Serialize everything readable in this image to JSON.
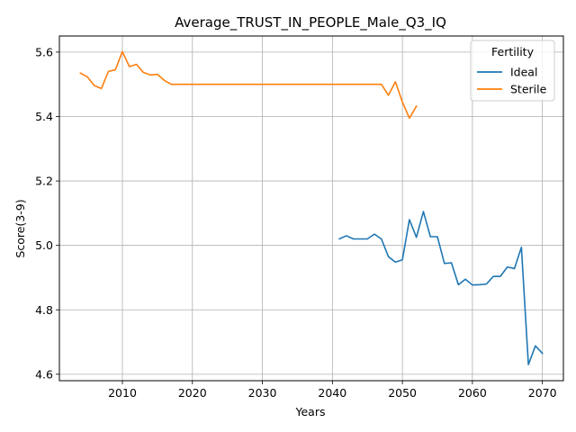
{
  "chart_data": {
    "type": "line",
    "title": "Average_TRUST_IN_PEOPLE_Male_Q3_IQ",
    "xlabel": "Years",
    "ylabel": "Score(3-9)",
    "xlim": [
      2001,
      2073
    ],
    "ylim": [
      4.58,
      5.65
    ],
    "xticks": [
      2010,
      2020,
      2030,
      2040,
      2050,
      2060,
      2070
    ],
    "yticks": [
      4.6,
      4.8,
      5.0,
      5.2,
      5.4,
      5.6
    ],
    "xtick_labels": [
      "2010",
      "2020",
      "2030",
      "2040",
      "2050",
      "2060",
      "2070"
    ],
    "ytick_labels": [
      "4.6",
      "4.8",
      "5.0",
      "5.2",
      "5.4",
      "5.6"
    ],
    "grid": true,
    "legend": {
      "title": "Fertility",
      "placement": "top-right"
    },
    "series": [
      {
        "name": "Ideal",
        "color": "#1f77b4",
        "x": [
          2041,
          2042,
          2043,
          2044,
          2045,
          2046,
          2047,
          2048,
          2049,
          2050,
          2051,
          2052,
          2053,
          2054,
          2055,
          2056,
          2057,
          2058,
          2059,
          2060,
          2061,
          2062,
          2063,
          2064,
          2065,
          2066,
          2067,
          2068,
          2069,
          2070
        ],
        "y": [
          5.02,
          5.03,
          5.02,
          5.02,
          5.02,
          5.035,
          5.02,
          4.965,
          4.948,
          4.955,
          5.08,
          5.025,
          5.105,
          5.027,
          5.027,
          4.944,
          4.946,
          4.878,
          4.895,
          4.877,
          4.878,
          4.88,
          4.904,
          4.904,
          4.933,
          4.928,
          4.994,
          4.63,
          4.688,
          4.665
        ]
      },
      {
        "name": "Sterile",
        "color": "#ff7f0e",
        "x": [
          2004,
          2005,
          2006,
          2007,
          2008,
          2009,
          2010,
          2011,
          2012,
          2013,
          2014,
          2015,
          2016,
          2017,
          2018,
          2019,
          2020,
          2021,
          2022,
          2023,
          2024,
          2025,
          2026,
          2027,
          2028,
          2029,
          2030,
          2031,
          2032,
          2033,
          2034,
          2035,
          2036,
          2037,
          2038,
          2039,
          2040,
          2041,
          2042,
          2043,
          2044,
          2045,
          2046,
          2047,
          2048,
          2049,
          2050,
          2051,
          2052
        ],
        "y": [
          5.535,
          5.523,
          5.496,
          5.487,
          5.54,
          5.545,
          5.602,
          5.555,
          5.562,
          5.537,
          5.529,
          5.531,
          5.512,
          5.5,
          5.5,
          5.5,
          5.5,
          5.5,
          5.5,
          5.5,
          5.5,
          5.5,
          5.5,
          5.5,
          5.5,
          5.5,
          5.5,
          5.5,
          5.5,
          5.5,
          5.5,
          5.5,
          5.5,
          5.5,
          5.5,
          5.5,
          5.5,
          5.5,
          5.5,
          5.5,
          5.5,
          5.5,
          5.5,
          5.5,
          5.466,
          5.508,
          5.445,
          5.395,
          5.432
        ]
      }
    ]
  }
}
